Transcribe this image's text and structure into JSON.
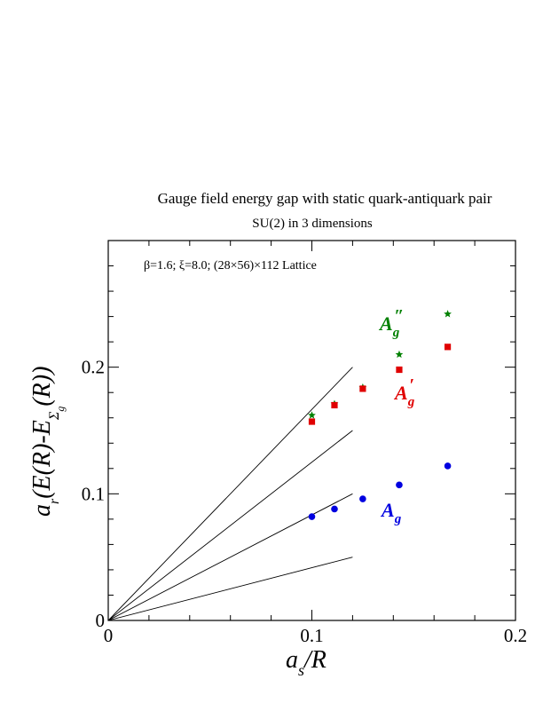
{
  "chart_data": {
    "type": "scatter",
    "title": "Gauge field energy gap with static quark-antiquark pair",
    "subtitle": "SU(2) in 3 dimensions",
    "annotation": "β=1.6;  ξ=8.0; (28×56)×112 Lattice",
    "xlabel": "a_s/R",
    "ylabel": "a_t(E(R)-E_{Σ_g}(R))",
    "xlim": [
      0,
      0.2
    ],
    "ylim": [
      0,
      0.3
    ],
    "x_ticks": [
      0,
      0.1,
      0.2
    ],
    "x_tick_labels": [
      "0",
      "0.1",
      "0.2"
    ],
    "y_ticks": [
      0,
      0.1,
      0.2
    ],
    "y_tick_labels": [
      "0",
      "0.1",
      "0.2"
    ],
    "minor_tick_step": 0.02,
    "grid": false,
    "series": [
      {
        "name": "A_g''",
        "label_main": "A",
        "label_sub": "g",
        "label_sup": "″",
        "color": "#008000",
        "marker": "star",
        "x": [
          0.1,
          0.1111,
          0.125,
          0.1429,
          0.1667
        ],
        "y": [
          0.162,
          0.171,
          0.184,
          0.21,
          0.242
        ]
      },
      {
        "name": "A_g'",
        "label_main": "A",
        "label_sub": "g",
        "label_sup": "′",
        "color": "#e00000",
        "marker": "square",
        "x": [
          0.1,
          0.1111,
          0.125,
          0.1429,
          0.1667
        ],
        "y": [
          0.157,
          0.17,
          0.183,
          0.198,
          0.216
        ]
      },
      {
        "name": "A_g",
        "label_main": "A",
        "label_sub": "g",
        "label_sup": "",
        "color": "#0000e0",
        "marker": "circle",
        "x": [
          0.1,
          0.1111,
          0.125,
          0.1429,
          0.1667
        ],
        "y": [
          0.082,
          0.088,
          0.096,
          0.107,
          0.122
        ]
      }
    ],
    "reference_lines": [
      {
        "x": [
          0,
          0.12
        ],
        "y": [
          0,
          0.2
        ]
      },
      {
        "x": [
          0,
          0.12
        ],
        "y": [
          0,
          0.15
        ]
      },
      {
        "x": [
          0,
          0.12
        ],
        "y": [
          0,
          0.1
        ]
      },
      {
        "x": [
          0,
          0.12
        ],
        "y": [
          0,
          0.05
        ]
      }
    ]
  }
}
